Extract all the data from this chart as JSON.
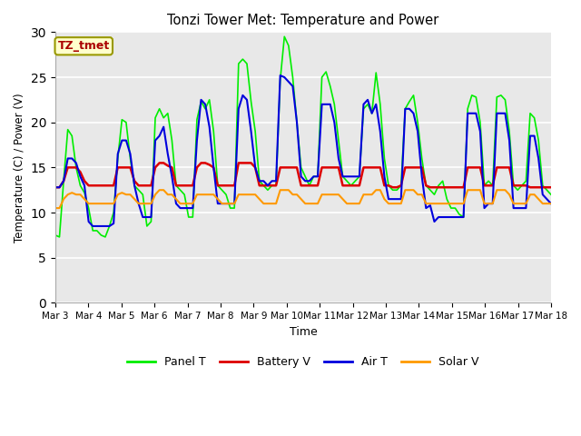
{
  "title": "Tonzi Tower Met: Temperature and Power",
  "xlabel": "Time",
  "ylabel": "Temperature (C) / Power (V)",
  "ylim": [
    0,
    30
  ],
  "yticks": [
    0,
    5,
    10,
    15,
    20,
    25,
    30
  ],
  "x_labels": [
    "Mar 3",
    "Mar 4",
    "Mar 5",
    "Mar 6",
    "Mar 7",
    "Mar 8",
    "Mar 9",
    "Mar 10",
    "Mar 11",
    "Mar 12",
    "Mar 13",
    "Mar 14",
    "Mar 15",
    "Mar 16",
    "Mar 17",
    "Mar 18"
  ],
  "legend_labels": [
    "Panel T",
    "Battery V",
    "Air T",
    "Solar V"
  ],
  "legend_colors": [
    "#00ee00",
    "#dd0000",
    "#0000dd",
    "#ff9900"
  ],
  "annotation_text": "TZ_tmet",
  "annotation_color": "#aa0000",
  "annotation_bg": "#ffffcc",
  "annotation_border": "#999900",
  "bg_color": "#e8e8e8",
  "plot_bg": "#dcdcdc",
  "fig_bg": "#ffffff",
  "panel_t": [
    7.5,
    7.3,
    13.5,
    19.2,
    18.5,
    15.0,
    13.0,
    12.2,
    10.5,
    8.0,
    8.0,
    7.5,
    7.3,
    8.5,
    10.0,
    16.0,
    20.3,
    20.0,
    16.0,
    13.0,
    12.5,
    12.0,
    8.5,
    9.0,
    20.5,
    21.5,
    20.5,
    21.0,
    18.0,
    13.0,
    12.5,
    12.0,
    9.5,
    9.5,
    20.3,
    22.3,
    21.5,
    22.5,
    19.0,
    13.0,
    12.5,
    12.0,
    10.5,
    10.5,
    26.5,
    27.0,
    26.5,
    22.3,
    19.0,
    13.5,
    13.0,
    12.5,
    13.0,
    13.0,
    24.7,
    29.5,
    28.5,
    25.0,
    20.0,
    15.0,
    14.0,
    13.0,
    14.0,
    14.0,
    25.0,
    25.6,
    24.0,
    22.0,
    18.0,
    14.0,
    13.5,
    13.0,
    13.5,
    14.0,
    21.5,
    22.0,
    21.0,
    25.5,
    22.0,
    16.0,
    13.0,
    12.5,
    12.5,
    13.0,
    21.5,
    22.3,
    23.0,
    20.0,
    16.0,
    13.0,
    12.5,
    12.0,
    13.0,
    13.5,
    11.5,
    10.5,
    10.5,
    9.8,
    9.5,
    21.5,
    23.0,
    22.8,
    20.0,
    13.0,
    13.5,
    13.0,
    22.8,
    23.0,
    22.5,
    19.0,
    13.0,
    12.5,
    13.0,
    13.5,
    21.0,
    20.5,
    18.0,
    13.0,
    12.5,
    12.0
  ],
  "battery_v": [
    12.8,
    12.8,
    13.5,
    15.0,
    15.0,
    15.0,
    14.5,
    13.5,
    13.0,
    13.0,
    13.0,
    13.0,
    13.0,
    13.0,
    13.0,
    15.0,
    15.0,
    15.0,
    15.0,
    13.5,
    13.0,
    13.0,
    13.0,
    13.0,
    15.0,
    15.5,
    15.5,
    15.2,
    15.0,
    13.0,
    13.0,
    13.0,
    13.0,
    13.0,
    15.0,
    15.5,
    15.5,
    15.3,
    15.0,
    13.0,
    13.0,
    13.0,
    13.0,
    13.0,
    15.5,
    15.5,
    15.5,
    15.5,
    15.0,
    13.0,
    13.0,
    13.0,
    13.0,
    13.0,
    15.0,
    15.0,
    15.0,
    15.0,
    15.0,
    13.0,
    13.0,
    13.0,
    13.0,
    13.0,
    15.0,
    15.0,
    15.0,
    15.0,
    15.0,
    13.0,
    13.0,
    13.0,
    13.0,
    13.0,
    15.0,
    15.0,
    15.0,
    15.0,
    15.0,
    13.0,
    13.0,
    12.8,
    12.8,
    13.0,
    15.0,
    15.0,
    15.0,
    15.0,
    15.0,
    13.0,
    12.8,
    12.8,
    12.8,
    12.8,
    12.8,
    12.8,
    12.8,
    12.8,
    12.8,
    15.0,
    15.0,
    15.0,
    15.0,
    13.0,
    13.0,
    13.0,
    15.0,
    15.0,
    15.0,
    15.0,
    13.0,
    13.0,
    13.0,
    13.0,
    12.8,
    12.8,
    12.8,
    12.8,
    12.8,
    12.8
  ],
  "air_t": [
    12.8,
    12.8,
    13.5,
    16.0,
    16.0,
    15.5,
    14.0,
    13.0,
    9.0,
    8.5,
    8.5,
    8.5,
    8.5,
    8.5,
    8.8,
    16.5,
    18.0,
    18.0,
    16.5,
    13.0,
    11.0,
    9.5,
    9.5,
    9.5,
    18.0,
    18.5,
    19.5,
    16.5,
    14.0,
    11.0,
    10.5,
    10.5,
    10.5,
    10.5,
    18.0,
    22.5,
    22.0,
    19.5,
    15.0,
    11.0,
    11.0,
    11.0,
    11.0,
    11.0,
    21.5,
    23.0,
    22.5,
    19.0,
    15.0,
    13.5,
    13.5,
    13.0,
    13.5,
    13.5,
    25.2,
    25.0,
    24.5,
    24.0,
    20.0,
    14.0,
    13.5,
    13.5,
    14.0,
    14.0,
    22.0,
    22.0,
    22.0,
    20.0,
    16.0,
    14.0,
    14.0,
    14.0,
    14.0,
    14.0,
    22.0,
    22.5,
    21.0,
    22.0,
    19.0,
    14.0,
    11.5,
    11.5,
    11.5,
    11.5,
    21.5,
    21.5,
    21.0,
    19.0,
    14.0,
    10.5,
    10.8,
    9.0,
    9.5,
    9.5,
    9.5,
    9.5,
    9.5,
    9.5,
    9.5,
    21.0,
    21.0,
    21.0,
    19.0,
    10.5,
    11.0,
    11.0,
    21.0,
    21.0,
    21.0,
    18.0,
    10.5,
    10.5,
    10.5,
    10.5,
    18.5,
    18.5,
    16.0,
    12.0,
    11.5,
    11.0
  ],
  "solar_v": [
    10.5,
    10.5,
    11.5,
    12.0,
    12.2,
    12.0,
    12.0,
    11.5,
    11.0,
    11.0,
    11.0,
    11.0,
    11.0,
    11.0,
    11.0,
    12.0,
    12.2,
    12.0,
    12.0,
    11.5,
    11.0,
    11.0,
    11.0,
    11.0,
    12.0,
    12.5,
    12.5,
    12.0,
    12.0,
    11.5,
    11.0,
    11.0,
    11.0,
    11.0,
    12.0,
    12.0,
    12.0,
    12.0,
    12.0,
    11.5,
    11.0,
    11.0,
    11.0,
    11.0,
    12.0,
    12.0,
    12.0,
    12.0,
    12.0,
    11.5,
    11.0,
    11.0,
    11.0,
    11.0,
    12.5,
    12.5,
    12.5,
    12.0,
    12.0,
    11.5,
    11.0,
    11.0,
    11.0,
    11.0,
    12.0,
    12.0,
    12.0,
    12.0,
    12.0,
    11.5,
    11.0,
    11.0,
    11.0,
    11.0,
    12.0,
    12.0,
    12.0,
    12.5,
    12.5,
    11.5,
    11.0,
    11.0,
    11.0,
    11.0,
    12.5,
    12.5,
    12.5,
    12.0,
    12.0,
    11.0,
    11.0,
    11.0,
    11.0,
    11.0,
    11.0,
    11.0,
    11.0,
    11.0,
    11.0,
    12.5,
    12.5,
    12.5,
    12.5,
    11.0,
    11.0,
    11.0,
    12.5,
    12.5,
    12.5,
    12.0,
    11.0,
    11.0,
    11.0,
    11.0,
    12.0,
    12.0,
    11.5,
    11.0,
    11.0,
    11.0
  ]
}
